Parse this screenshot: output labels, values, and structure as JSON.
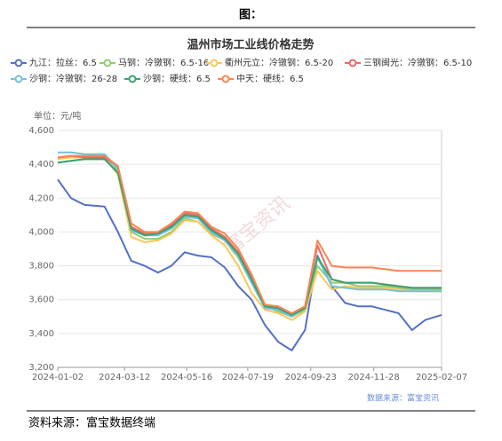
{
  "header": "图：",
  "footer": "资料来源：富宝数据终端",
  "chart_data": {
    "type": "line",
    "title": "温州市场工业线价格走势",
    "y_unit": "单位：元/吨",
    "source": "数据来源：富宝资讯",
    "watermark": "富宝资讯",
    "x": [
      "2024-01-02",
      "2024-01-16",
      "2024-01-30",
      "2024-02-20",
      "2024-03-05",
      "2024-03-19",
      "2024-04-02",
      "2024-04-16",
      "2024-04-30",
      "2024-05-14",
      "2024-05-28",
      "2024-06-11",
      "2024-06-25",
      "2024-07-09",
      "2024-07-23",
      "2024-08-06",
      "2024-08-20",
      "2024-09-03",
      "2024-09-17",
      "2024-09-30",
      "2024-10-15",
      "2024-10-29",
      "2024-11-12",
      "2024-11-26",
      "2024-12-10",
      "2024-12-24",
      "2025-01-07",
      "2025-01-21",
      "2025-02-07"
    ],
    "xlim": [
      "2024-01-02",
      "2025-02-07"
    ],
    "xticks": [
      "2024-01-02",
      "2024-03-12",
      "2024-05-16",
      "2024-07-19",
      "2024-09-23",
      "2024-11-28",
      "2025-02-07"
    ],
    "ylim": [
      3200,
      4600
    ],
    "yticks": [
      {
        "value": 3200,
        "label": "3,200"
      },
      {
        "value": 3400,
        "label": "3,400"
      },
      {
        "value": 3600,
        "label": "3,600"
      },
      {
        "value": 3800,
        "label": "3,800"
      },
      {
        "value": 4000,
        "label": "4,000"
      },
      {
        "value": 4200,
        "label": "4,200"
      },
      {
        "value": 4400,
        "label": "4,400"
      },
      {
        "value": 4600,
        "label": "4,600"
      }
    ],
    "grid": true,
    "series": [
      {
        "name": "九江：拉丝：6.5",
        "color": "#5470c6",
        "values": [
          4310,
          4200,
          4160,
          4150,
          4000,
          3830,
          3800,
          3760,
          3800,
          3880,
          3860,
          3850,
          3790,
          3680,
          3600,
          3450,
          3350,
          3300,
          3420,
          3860,
          3680,
          3580,
          3560,
          3560,
          3540,
          3520,
          3420,
          3480,
          3510
        ]
      },
      {
        "name": "马钢：冷镦钢：6.5-16",
        "color": "#91cc75",
        "values": [
          4410,
          4420,
          4430,
          4430,
          4360,
          4000,
          3960,
          3960,
          4000,
          4080,
          4060,
          3990,
          3950,
          3850,
          3700,
          3560,
          3530,
          3500,
          3540,
          3800,
          3700,
          3700,
          3680,
          3680,
          3680,
          3670,
          3660,
          3660,
          3660
        ]
      },
      {
        "name": "衢州元立：冷镦钢：6.5-20",
        "color": "#fac858",
        "values": [
          4430,
          4440,
          4440,
          4440,
          4340,
          3970,
          3940,
          3950,
          3990,
          4070,
          4060,
          3980,
          3920,
          3800,
          3640,
          3540,
          3520,
          3480,
          3530,
          3770,
          3660,
          3680,
          3670,
          3670,
          3670,
          3660,
          3650,
          3650,
          3650
        ]
      },
      {
        "name": "三钢闽光：冷镦钢：6.5-10",
        "color": "#ee6666",
        "values": [
          4440,
          4450,
          4440,
          4440,
          4380,
          4030,
          3990,
          3990,
          4040,
          4110,
          4100,
          4020,
          3970,
          3880,
          3730,
          3560,
          3550,
          3510,
          3560,
          3920,
          3720,
          3700,
          3700,
          3700,
          3690,
          3680,
          3670,
          3670,
          3670
        ]
      },
      {
        "name": "沙钢：冷镦钢：26-28",
        "color": "#73c0de",
        "values": [
          4470,
          4470,
          4460,
          4460,
          4370,
          4010,
          3980,
          3980,
          4020,
          4090,
          4080,
          4000,
          3950,
          3860,
          3700,
          3550,
          3540,
          3500,
          3550,
          3850,
          3680,
          3670,
          3660,
          3660,
          3660,
          3650,
          3650,
          3650,
          3650
        ]
      },
      {
        "name": "沙钢：硬线：6.5",
        "color": "#3ba272",
        "values": [
          4410,
          4420,
          4430,
          4430,
          4350,
          4020,
          3980,
          3990,
          4030,
          4100,
          4090,
          4010,
          3960,
          3870,
          3720,
          3560,
          3550,
          3510,
          3550,
          3850,
          3720,
          3700,
          3700,
          3700,
          3690,
          3680,
          3670,
          3670,
          3670
        ]
      },
      {
        "name": "中天：硬线：6.5",
        "color": "#fc8452",
        "values": [
          4440,
          4450,
          4450,
          4450,
          4390,
          4050,
          4000,
          4000,
          4050,
          4120,
          4110,
          4030,
          3990,
          3900,
          3750,
          3570,
          3560,
          3520,
          3560,
          3950,
          3800,
          3790,
          3790,
          3790,
          3780,
          3770,
          3770,
          3770,
          3770
        ]
      }
    ]
  }
}
